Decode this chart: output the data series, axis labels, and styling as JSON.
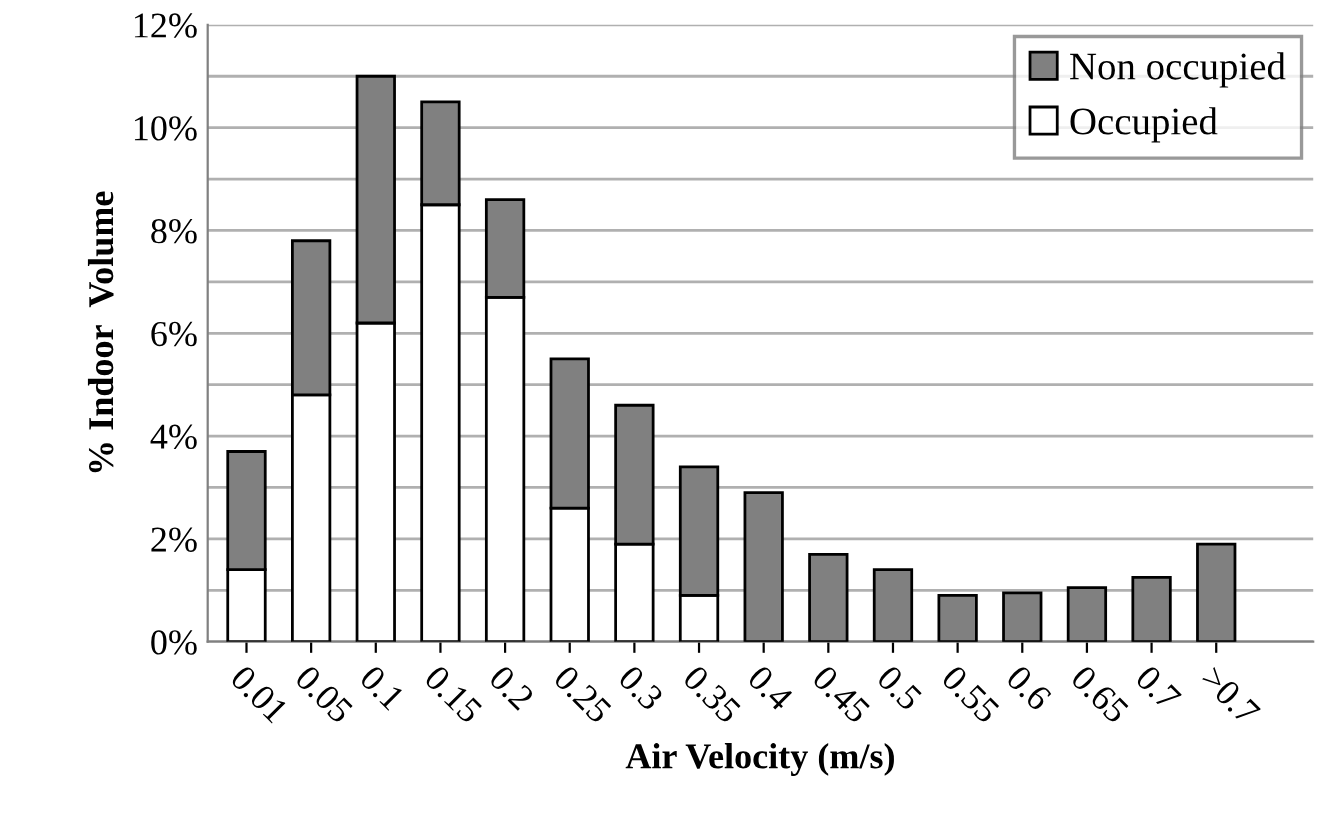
{
  "chart_data": {
    "type": "bar",
    "stacked": true,
    "xlabel": "Air Velocity (m/s)",
    "ylabel": "% Indoor  Volume",
    "categories": [
      "0.01",
      "0.05",
      "0.1",
      "0.15",
      "0.2",
      "0.25",
      "0.3",
      "0.35",
      "0.4",
      "0.45",
      "0.5",
      "0.55",
      "0.6",
      "0.65",
      "0.7",
      ">0.7"
    ],
    "series": [
      {
        "name": "Occupied",
        "color": "#ffffff",
        "values": [
          1.4,
          4.8,
          6.2,
          8.5,
          6.7,
          2.6,
          1.9,
          0.9,
          0,
          0,
          0,
          0,
          0,
          0,
          0,
          0
        ]
      },
      {
        "name": "Non occupied",
        "color": "#808080",
        "values": [
          2.3,
          3.0,
          4.8,
          2.0,
          1.9,
          2.9,
          2.7,
          2.5,
          2.9,
          1.7,
          1.4,
          0.9,
          0.95,
          1.05,
          1.25,
          1.9
        ]
      }
    ],
    "ylim": [
      0,
      12
    ],
    "yticks": [
      {
        "value": 0,
        "label": "0%"
      },
      {
        "value": 1,
        "label": null
      },
      {
        "value": 2,
        "label": "2%"
      },
      {
        "value": 3,
        "label": null
      },
      {
        "value": 4,
        "label": "4%"
      },
      {
        "value": 5,
        "label": null
      },
      {
        "value": 6,
        "label": "6%"
      },
      {
        "value": 7,
        "label": null
      },
      {
        "value": 8,
        "label": "8%"
      },
      {
        "value": 9,
        "label": null
      },
      {
        "value": 10,
        "label": "10%"
      },
      {
        "value": 11,
        "label": null
      },
      {
        "value": 12,
        "label": "12%"
      }
    ],
    "grid": "y",
    "legend": "top right"
  }
}
